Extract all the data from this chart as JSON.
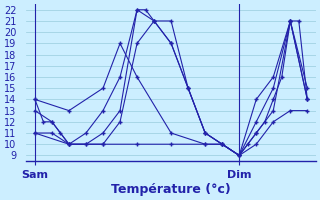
{
  "title": "Température (°c)",
  "background_color": "#cceeff",
  "grid_color": "#99ccdd",
  "line_color": "#2222aa",
  "marker": "+",
  "xtick_labels": [
    "Sam",
    "Dim"
  ],
  "xtick_positions": [
    0,
    24
  ],
  "yticks": [
    9,
    10,
    11,
    12,
    13,
    14,
    15,
    16,
    17,
    18,
    19,
    20,
    21,
    22
  ],
  "ylim": [
    8.5,
    22.5
  ],
  "xlim": [
    -1,
    33
  ],
  "vlines": [
    0,
    24
  ],
  "lines": [
    {
      "x": [
        0,
        1,
        2,
        3,
        4,
        6,
        8,
        10,
        12,
        13,
        14,
        16,
        18,
        20,
        22,
        24,
        25,
        26,
        27,
        28,
        29,
        30,
        31,
        32
      ],
      "y": [
        14,
        12,
        12,
        11,
        10,
        11,
        13,
        16,
        22,
        22,
        21,
        19,
        15,
        11,
        10,
        9,
        10,
        11,
        12,
        14,
        16,
        21,
        21,
        14
      ]
    },
    {
      "x": [
        0,
        2,
        4,
        6,
        8,
        10,
        12,
        14,
        16,
        18,
        20,
        22,
        24,
        26,
        28,
        30,
        32
      ],
      "y": [
        13,
        12,
        10,
        10,
        11,
        13,
        22,
        21,
        19,
        15,
        11,
        10,
        9,
        11,
        13,
        21,
        14
      ]
    },
    {
      "x": [
        0,
        2,
        4,
        6,
        8,
        10,
        12,
        14,
        16,
        18,
        20,
        22,
        24,
        26,
        28,
        30,
        32
      ],
      "y": [
        11,
        11,
        10,
        10,
        10,
        12,
        19,
        21,
        21,
        15,
        11,
        10,
        9,
        12,
        15,
        21,
        15
      ]
    },
    {
      "x": [
        0,
        4,
        8,
        10,
        12,
        16,
        20,
        22,
        24,
        26,
        28,
        30,
        32
      ],
      "y": [
        14,
        13,
        15,
        19,
        16,
        11,
        10,
        10,
        9,
        14,
        16,
        21,
        14
      ]
    },
    {
      "x": [
        0,
        4,
        8,
        12,
        16,
        20,
        22,
        24,
        26,
        28,
        30,
        32
      ],
      "y": [
        11,
        10,
        10,
        10,
        10,
        10,
        10,
        9,
        10,
        12,
        13,
        13
      ]
    }
  ]
}
